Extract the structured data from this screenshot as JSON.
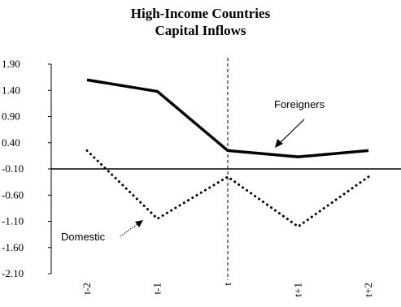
{
  "chart_data": {
    "type": "line",
    "title": [
      "High-Income Countries",
      "Capital Inflows"
    ],
    "categories": [
      "t-2",
      "t-1",
      "t",
      "t+1",
      "t+2"
    ],
    "yticks": [
      "1.90",
      "1.40",
      "0.90",
      "0.40",
      "-0.10",
      "-0.60",
      "-1.10",
      "-1.60",
      "-2.10"
    ],
    "ylim": [
      -2.1,
      1.9
    ],
    "grid": false,
    "reference_line_at_category": "t",
    "series": [
      {
        "name": "Foreigners",
        "style": "solid",
        "values": [
          1.6,
          1.38,
          0.25,
          0.13,
          0.25
        ]
      },
      {
        "name": "Domestic",
        "style": "dotted",
        "values": [
          0.25,
          -1.05,
          -0.25,
          -1.2,
          -0.25
        ]
      }
    ],
    "annotations": [
      {
        "text": "Foreigners",
        "series": "Foreigners"
      },
      {
        "text": "Domestic",
        "series": "Domestic"
      }
    ],
    "colors": {
      "lines": "#000000",
      "axis": "#000000"
    }
  }
}
